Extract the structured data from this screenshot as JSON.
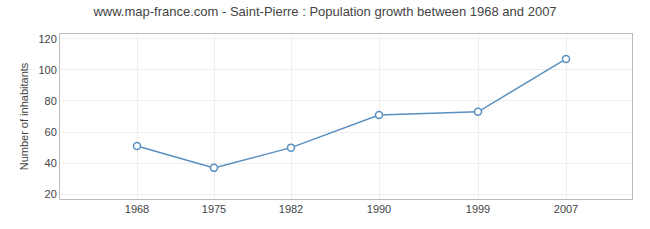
{
  "chart_data": {
    "type": "line",
    "title": "www.map-france.com - Saint-Pierre : Population growth between 1968 and 2007",
    "x": [
      1968,
      1975,
      1982,
      1990,
      1999,
      2007
    ],
    "values": [
      51,
      37,
      50,
      71,
      73,
      107
    ],
    "color": "#5a8fc0",
    "marker": "circle",
    "line_style": "solid",
    "ylabel": "Number of inhabitants",
    "xlim": [
      1961,
      2013
    ],
    "xticks": [
      1968,
      1975,
      1982,
      1990,
      1999,
      2007
    ],
    "ylim": [
      17,
      123
    ],
    "yticks": [
      20,
      40,
      60,
      80,
      100,
      120
    ],
    "grid": true
  }
}
